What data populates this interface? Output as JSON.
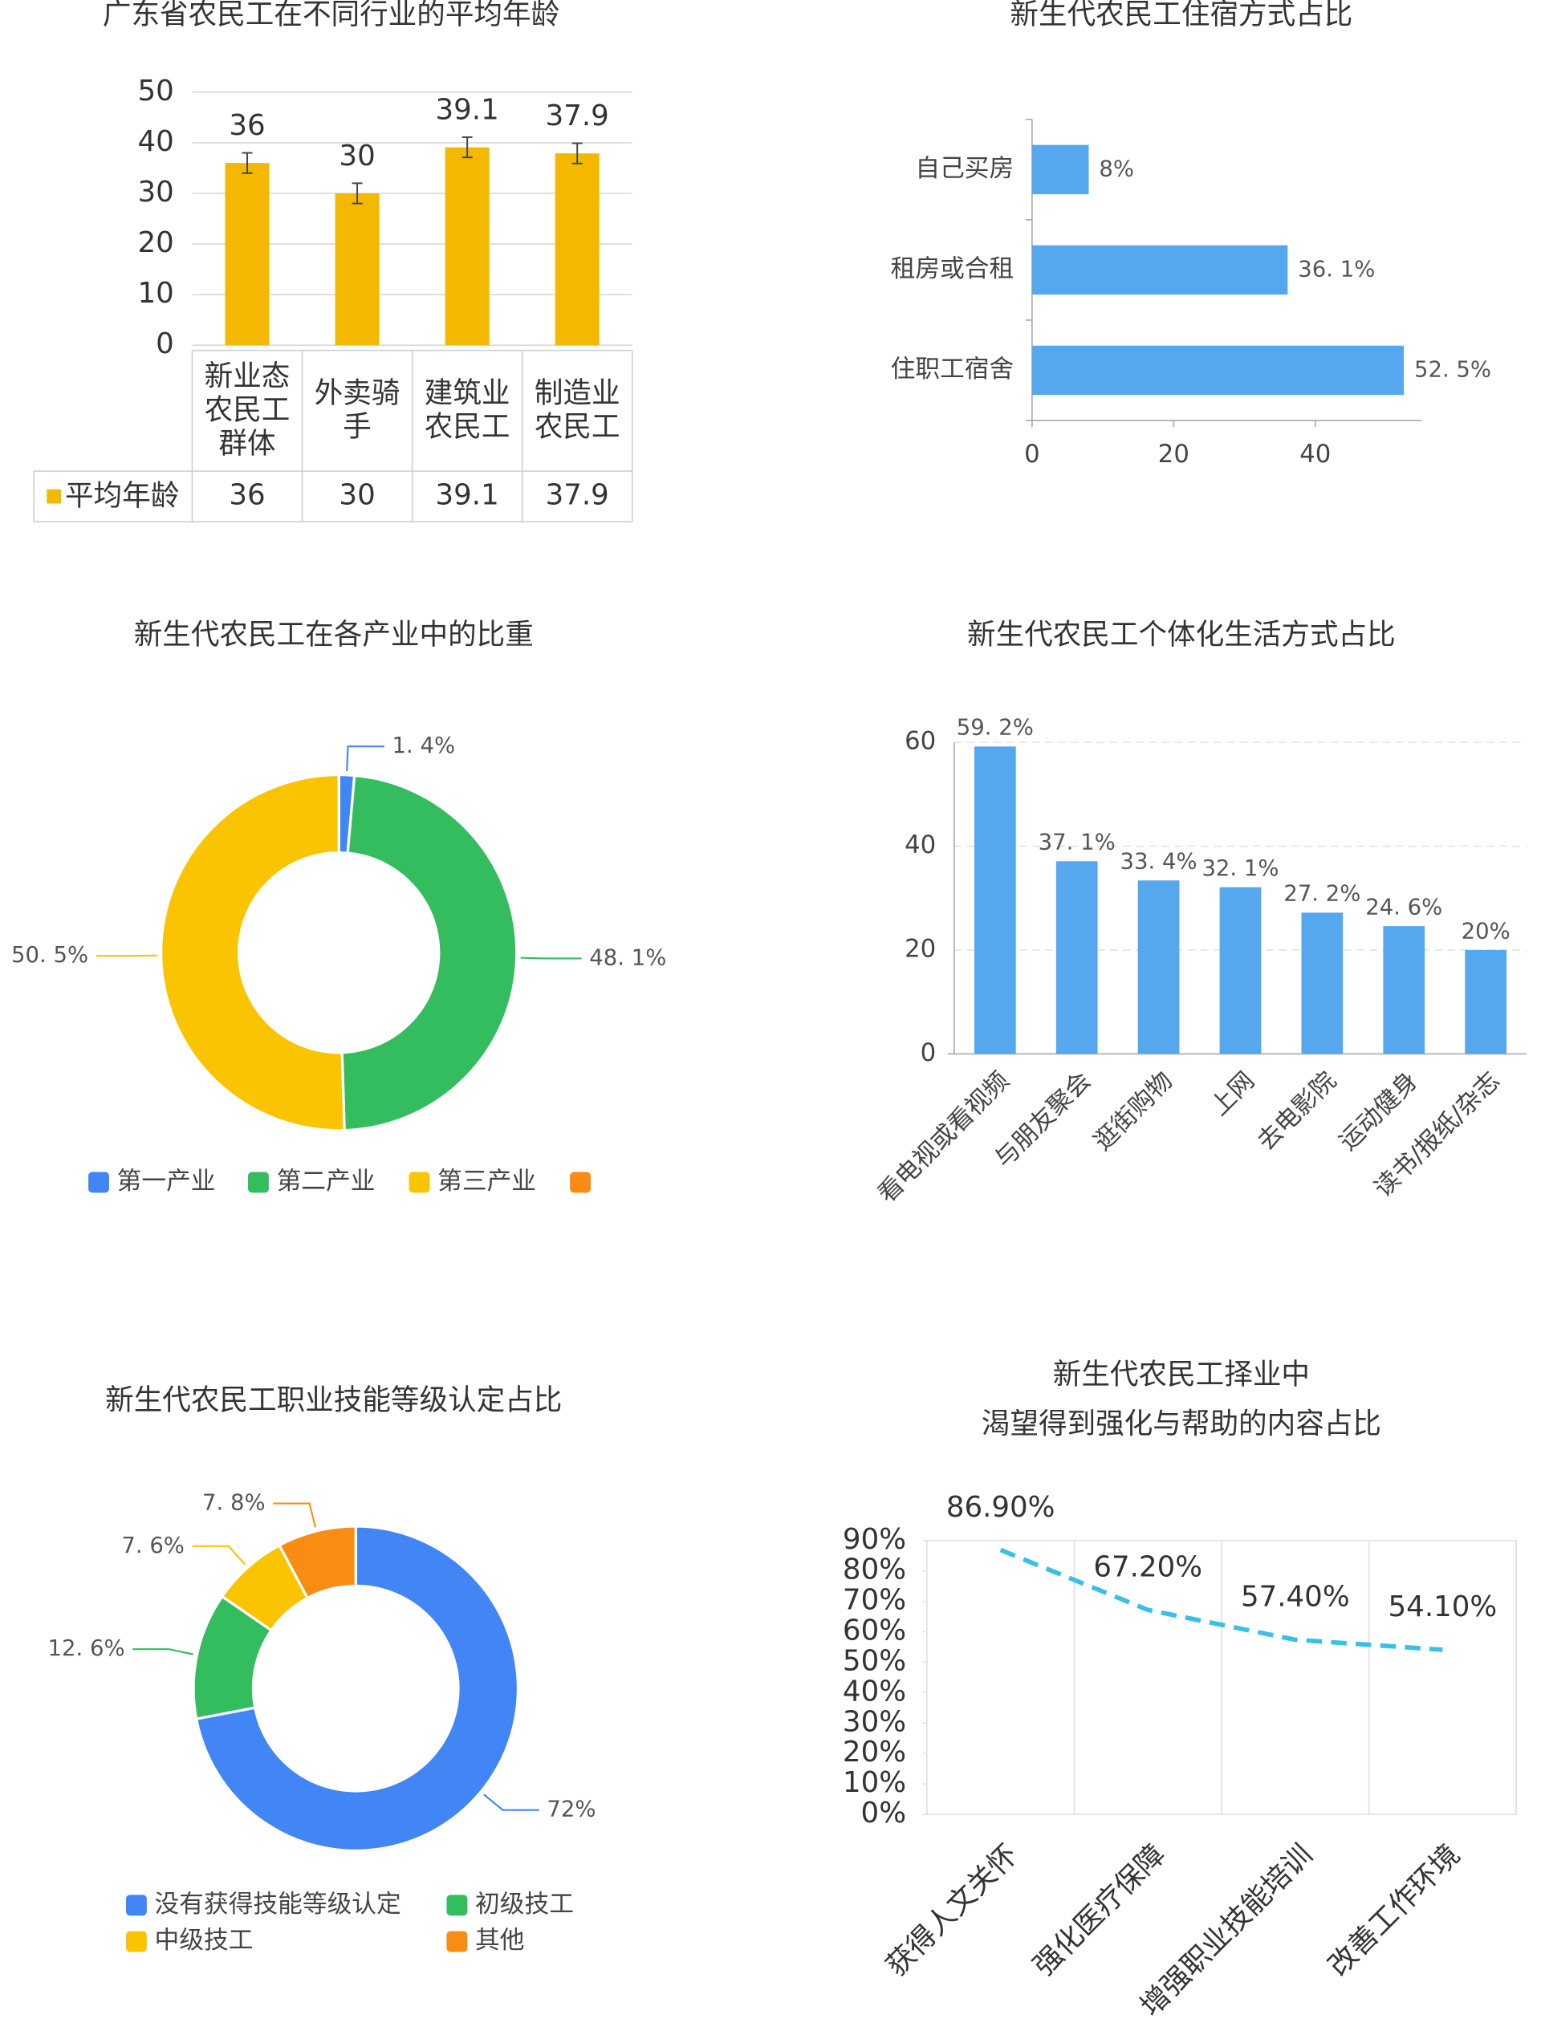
{
  "chart_data": [
    {
      "type": "bar",
      "title": "广东省农民工在不同行业的平均年龄",
      "categories": [
        "新业态农民工群体",
        "外卖骑手",
        "建筑业农民工",
        "制造业农民工"
      ],
      "series": [
        {
          "name": "平均年龄",
          "color": "#f5b800",
          "values": [
            36,
            30,
            39.1,
            37.9
          ],
          "errors": [
            2,
            2,
            2,
            2
          ]
        }
      ],
      "ylim": [
        0,
        50
      ],
      "yticks": [
        0,
        10,
        20,
        30,
        40,
        50
      ],
      "grid": true,
      "data_table": true
    },
    {
      "type": "bar",
      "horizontal": true,
      "title": "新生代农民工住宿方式占比",
      "categories": [
        "自己买房",
        "租房或合租",
        "住职工宿舍"
      ],
      "values": [
        8,
        36.1,
        52.5
      ],
      "value_labels": [
        "8%",
        "36. 1%",
        "52. 5%"
      ],
      "color": "#56a8ee",
      "xlim": [
        0,
        55
      ],
      "xticks": [
        0,
        20,
        40
      ],
      "grid": false
    },
    {
      "type": "pie",
      "donut": true,
      "title": "新生代农民工在各产业中的比重",
      "categories": [
        "第一产业",
        "第二产业",
        "第三产业",
        null
      ],
      "values": [
        1.4,
        48.1,
        50.5,
        0
      ],
      "value_labels": [
        "1. 4%",
        "48. 1%",
        "50. 5%",
        null
      ],
      "colors": [
        "#4285f4",
        "#34bd5e",
        "#fbc400",
        "#f98c12"
      ]
    },
    {
      "type": "bar",
      "title": "新生代农民工个体化生活方式占比",
      "categories": [
        "看电视或看视频",
        "与朋友聚会",
        "逛街购物",
        "上网",
        "去电影院",
        "运动健身",
        "读书/报纸/杂志"
      ],
      "values": [
        59.2,
        37.1,
        33.4,
        32.1,
        27.2,
        24.6,
        20
      ],
      "value_labels": [
        "59. 2%",
        "37. 1%",
        "33. 4%",
        "32. 1%",
        "27. 2%",
        "24. 6%",
        "20%"
      ],
      "color": "#56a8ee",
      "ylim": [
        0,
        60
      ],
      "yticks": [
        0,
        20,
        40,
        60
      ],
      "grid": true
    },
    {
      "type": "pie",
      "donut": true,
      "title": "新生代农民工职业技能等级认定占比",
      "categories": [
        "没有获得技能等级认定",
        "初级技工",
        "中级技工",
        "其他"
      ],
      "values": [
        72,
        12.6,
        7.6,
        7.8
      ],
      "value_labels": [
        "72%",
        "12. 6%",
        "7. 6%",
        "7. 8%"
      ],
      "colors": [
        "#4285f4",
        "#34bd5e",
        "#fbc400",
        "#f98c12"
      ]
    },
    {
      "type": "line",
      "title": [
        "新生代农民工择业中",
        "渴望得到强化与帮助的内容占比"
      ],
      "categories": [
        "获得人文关怀",
        "强化医疗保障",
        "增强职业技能培训",
        "改善工作环境"
      ],
      "values": [
        86.9,
        67.2,
        57.4,
        54.1
      ],
      "value_labels": [
        "86.90%",
        "67.20%",
        "57.40%",
        "54.10%"
      ],
      "color": "#38c0e8",
      "ylim": [
        0,
        90
      ],
      "yticks": [
        {
          "value": 0,
          "label": "0%"
        },
        {
          "value": 10,
          "label": "10%"
        },
        {
          "value": 20,
          "label": "20%"
        },
        {
          "value": 30,
          "label": "30%"
        },
        {
          "value": 40,
          "label": "40%"
        },
        {
          "value": 50,
          "label": "50%"
        },
        {
          "value": 60,
          "label": "60%"
        },
        {
          "value": 70,
          "label": "70%"
        },
        {
          "value": 80,
          "label": "80%"
        },
        {
          "value": 90,
          "label": "90%"
        }
      ]
    }
  ]
}
